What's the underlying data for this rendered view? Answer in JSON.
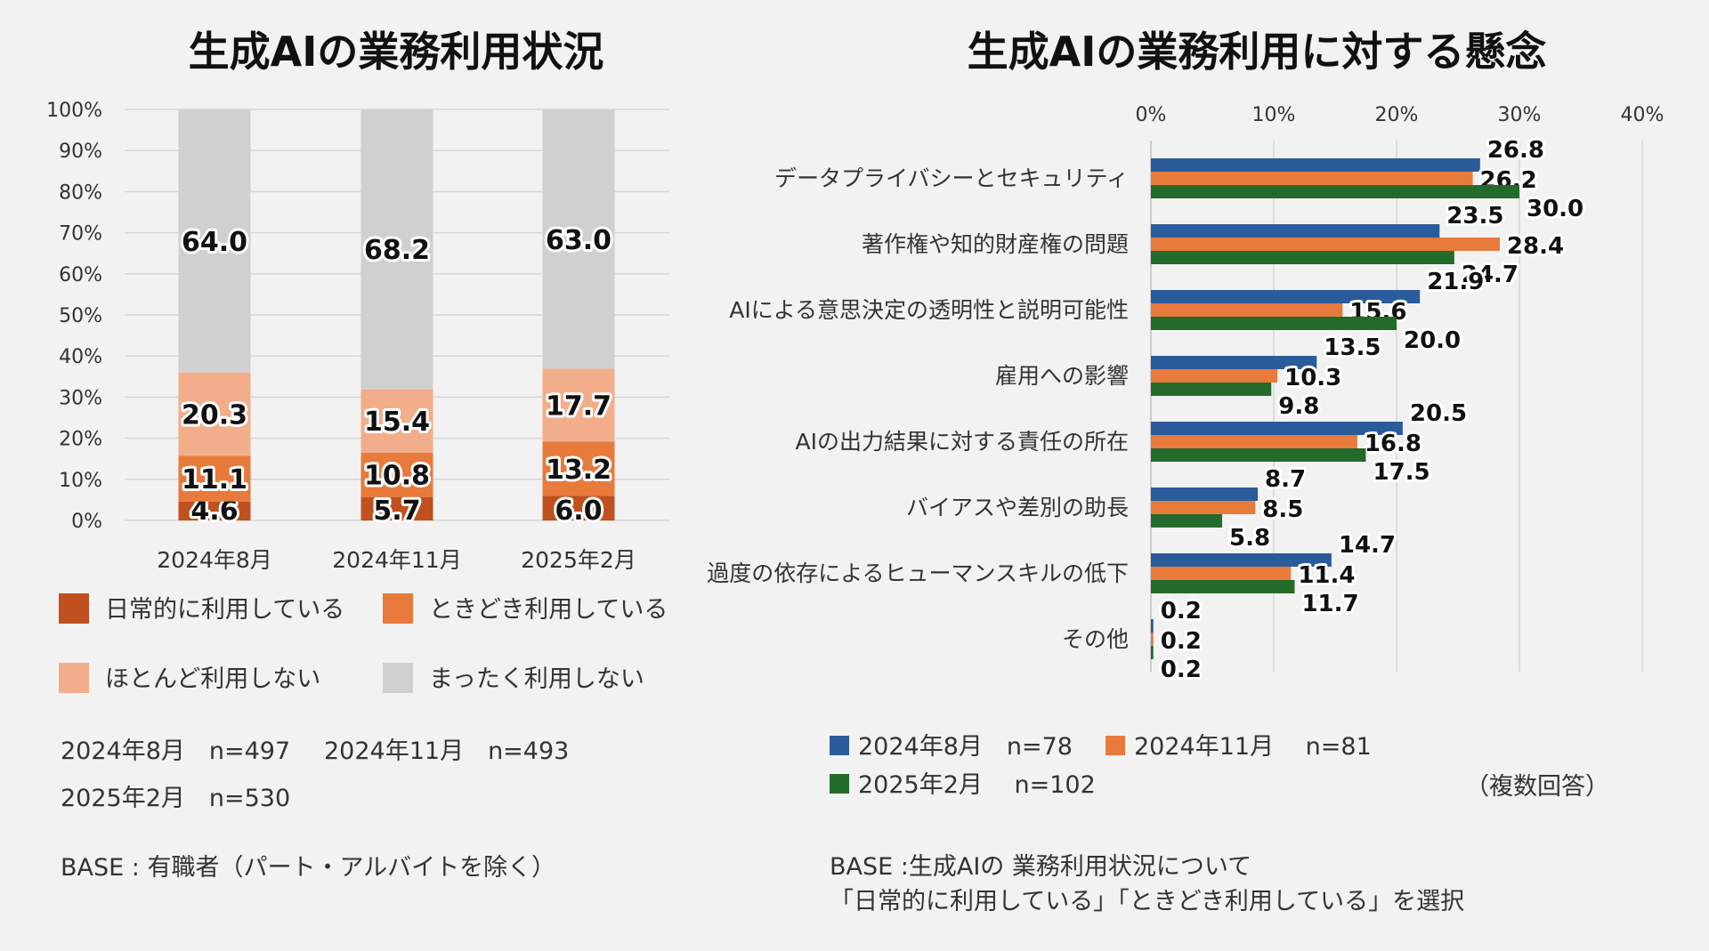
{
  "chart_data": [
    {
      "type": "bar",
      "orientation": "vertical",
      "stacked": true,
      "title": "生成AIの業務利用状況",
      "categories": [
        "2024年8月",
        "2024年11月",
        "2025年2月"
      ],
      "series": [
        {
          "name": "日常的に利用している",
          "color": "#c0501e",
          "values": [
            4.6,
            5.7,
            6.0
          ]
        },
        {
          "name": "ときどき利用している",
          "color": "#e87a3c",
          "values": [
            11.1,
            10.8,
            13.2
          ]
        },
        {
          "name": "ほとんど利用しない",
          "color": "#f2ae8a",
          "values": [
            20.3,
            15.4,
            17.7
          ]
        },
        {
          "name": "まったく利用しない",
          "color": "#d0d0d0",
          "values": [
            64.0,
            68.2,
            63.0
          ]
        }
      ],
      "yticks": [
        "0%",
        "10%",
        "20%",
        "30%",
        "40%",
        "50%",
        "60%",
        "70%",
        "80%",
        "90%",
        "100%"
      ],
      "ylim": [
        0,
        100
      ],
      "grid": true,
      "legend": "bottom",
      "notes": [
        "2024年8月　n=497",
        "2024年11月　n=493",
        "2025年2月　n=530"
      ],
      "base": "BASE : 有職者（パート・アルバイトを除く）"
    },
    {
      "type": "bar",
      "orientation": "horizontal",
      "title": "生成AIの業務利用に対する懸念",
      "categories": [
        "データプライバシーとセキュリティ",
        "著作権や知的財産権の問題",
        "AIによる意思決定の透明性と説明可能性",
        "雇用への影響",
        "AIの出力結果に対する責任の所在",
        "バイアスや差別の助長",
        "過度の依存によるヒューマンスキルの低下",
        "その他"
      ],
      "series": [
        {
          "name": "2024年8月　n=78",
          "color": "#2a5b9a",
          "values": [
            26.8,
            23.5,
            21.9,
            13.5,
            20.5,
            8.7,
            14.7,
            0.2
          ]
        },
        {
          "name": "2024年11月　 n=81",
          "color": "#e87a3c",
          "values": [
            26.2,
            28.4,
            15.6,
            10.3,
            16.8,
            8.5,
            11.4,
            0.2
          ]
        },
        {
          "name": "2025年2月　 n=102",
          "color": "#236b2a",
          "values": [
            30.0,
            24.7,
            20.0,
            9.8,
            17.5,
            5.8,
            11.7,
            0.2
          ]
        }
      ],
      "xticks": [
        "0%",
        "10%",
        "20%",
        "30%",
        "40%"
      ],
      "xlim": [
        0,
        40
      ],
      "grid": true,
      "legend": "bottom-left",
      "note": "（複数回答）",
      "base": [
        "BASE :生成AIの 業務利用状況について",
        "「日常的に利用している」「ときどき利用している」を選択"
      ]
    }
  ]
}
